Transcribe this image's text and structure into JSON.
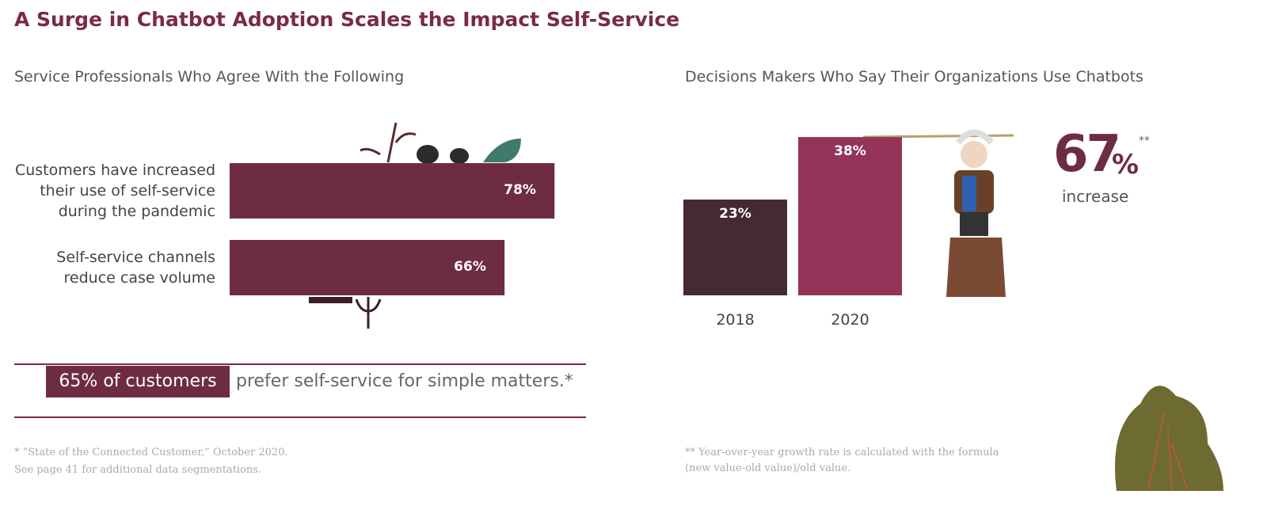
{
  "title": "A Surge in Chatbot Adoption Scales the Impact Self-Service",
  "chart_data": [
    {
      "type": "bar",
      "orientation": "horizontal",
      "title": "Service Professionals Who Agree With the Following",
      "categories": [
        "Customers have increased their use of self-service during the pandemic",
        "Self-service channels reduce case volume"
      ],
      "values": [
        78,
        66
      ],
      "value_labels": [
        "78%",
        "66%"
      ],
      "color": "#6e2c42"
    },
    {
      "type": "bar",
      "orientation": "vertical",
      "title": "Decisions Makers Who Say Their Organizations Use Chatbots",
      "categories": [
        "2018",
        "2020"
      ],
      "values": [
        23,
        38
      ],
      "value_labels": [
        "23%",
        "38%"
      ],
      "colors": [
        "#452a35",
        "#943458"
      ]
    }
  ],
  "callout": {
    "highlight": "65% of customers",
    "text": "prefer self-service for simple matters.*"
  },
  "increase": {
    "value": "67",
    "unit": "%",
    "marker": "**",
    "label": "increase"
  },
  "footnotes": {
    "left": [
      "* “State of the Connected Customer,” October 2020.",
      "See page 41 for additional data segmentations."
    ],
    "right": [
      "** Year-over-year growth rate is calculated with the formula",
      "(new value-old value)/old value."
    ]
  }
}
